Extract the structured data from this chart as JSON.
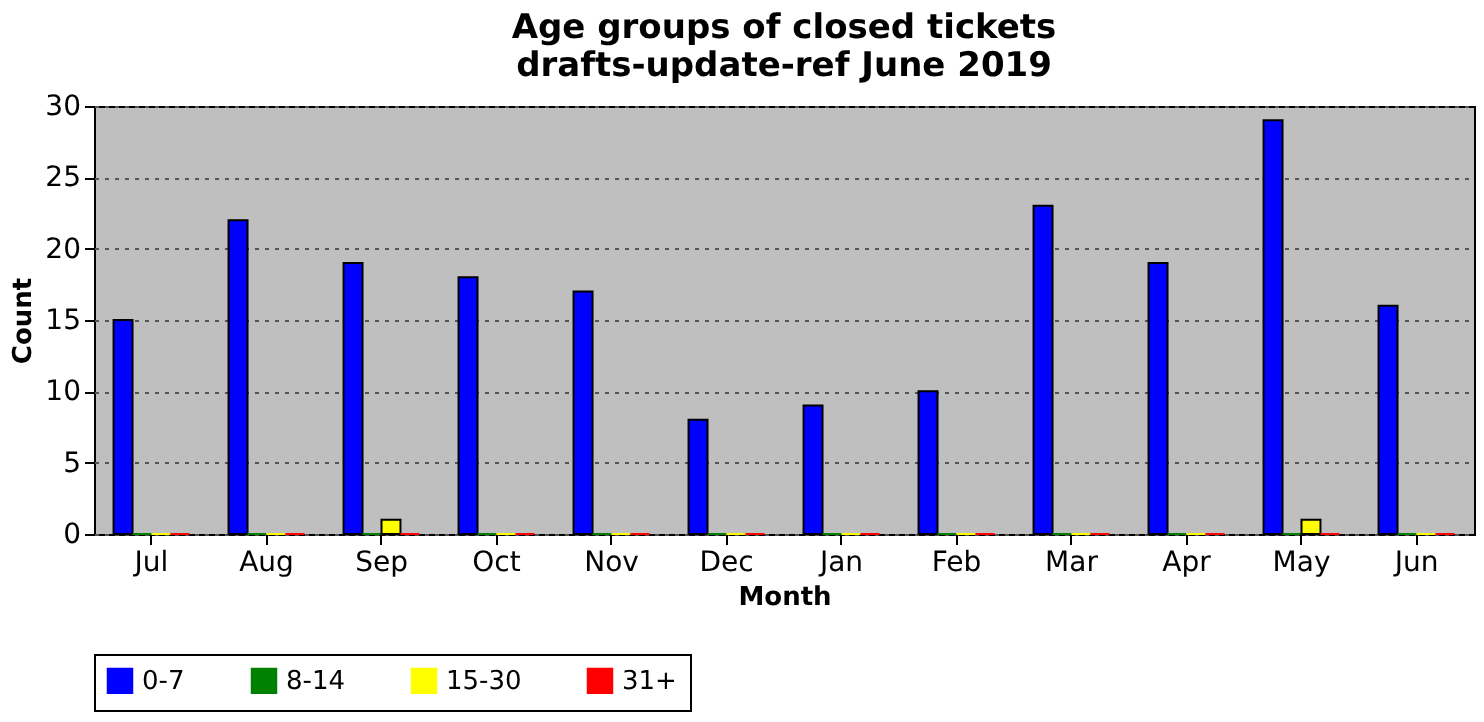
{
  "chart_data": {
    "type": "bar",
    "title": "Age groups of closed tickets",
    "subtitle": "drafts-update-ref June 2019",
    "xlabel": "Month",
    "ylabel": "Count",
    "categories": [
      "Jul",
      "Aug",
      "Sep",
      "Oct",
      "Nov",
      "Dec",
      "Jan",
      "Feb",
      "Mar",
      "Apr",
      "May",
      "Jun"
    ],
    "series": [
      {
        "name": "0-7",
        "color": "#0000ff",
        "values": [
          15,
          22,
          19,
          18,
          17,
          8,
          9,
          10,
          23,
          19,
          29,
          16
        ]
      },
      {
        "name": "8-14",
        "color": "#008000",
        "values": [
          0,
          0,
          0,
          0,
          0,
          0,
          0,
          0,
          0,
          0,
          0,
          0
        ]
      },
      {
        "name": "15-30",
        "color": "#ffff00",
        "values": [
          0,
          0,
          1,
          0,
          0,
          0,
          0,
          0,
          0,
          0,
          1,
          0
        ]
      },
      {
        "name": "31+",
        "color": "#ff0000",
        "values": [
          0,
          0,
          0,
          0,
          0,
          0,
          0,
          0,
          0,
          0,
          0,
          0
        ]
      }
    ],
    "ylim": [
      0,
      30
    ],
    "yticks": [
      0,
      5,
      10,
      15,
      20,
      25,
      30
    ],
    "grid": "y",
    "legend": "bottom"
  }
}
